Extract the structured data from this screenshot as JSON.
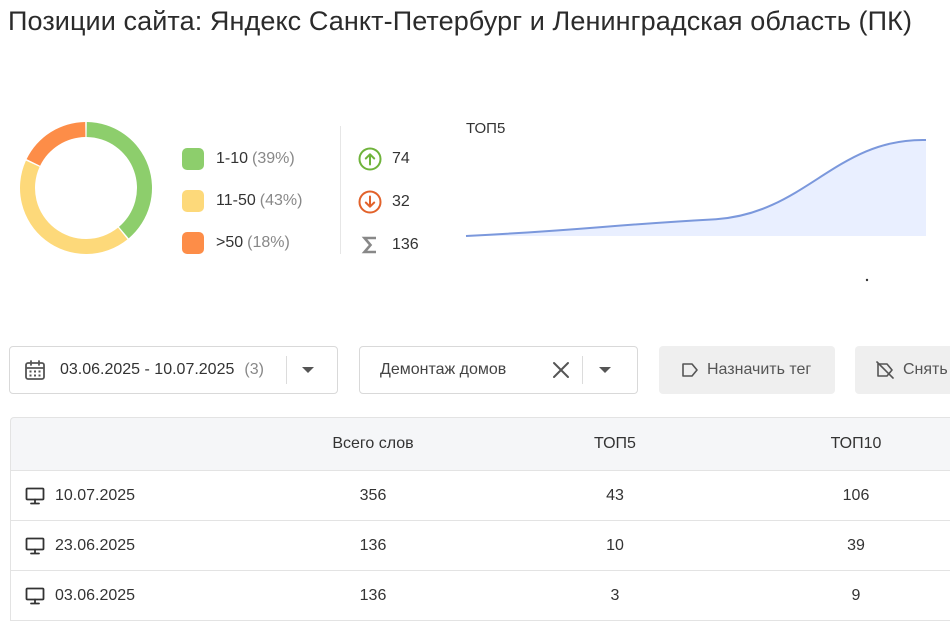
{
  "page": {
    "title": "Позиции сайта: Яндекс Санкт-Петербург и Ленинградская область (ПК)"
  },
  "distribution": {
    "segments": [
      {
        "label": "1-10",
        "pct_text": "(39%)",
        "value": 39,
        "color": "#8dce6c"
      },
      {
        "label": "11-50",
        "pct_text": "(43%)",
        "value": 43,
        "color": "#fdd97a"
      },
      {
        "label": ">50",
        "pct_text": "(18%)",
        "value": 18,
        "color": "#fd8d48"
      }
    ]
  },
  "stats": {
    "up": {
      "value": "74",
      "icon": "arrow-up-circle-icon",
      "color": "#6fb33b"
    },
    "down": {
      "value": "32",
      "icon": "arrow-down-circle-icon",
      "color": "#e2622b"
    },
    "total": {
      "value": "136",
      "icon": "sigma-icon",
      "color": "#888888"
    }
  },
  "sparkline": {
    "label": "ТОП5",
    "color": "#7b98dc",
    "fill": "#e9efff",
    "values": [
      3,
      10,
      43
    ]
  },
  "filters": {
    "date_range": "03.06.2025 - 10.07.2025",
    "date_count": "(3)",
    "tag_filter": "Демонтаж домов",
    "assign_tag_label": "Назначить тег",
    "remove_tag_label": "Снять"
  },
  "table": {
    "columns": [
      "",
      "Всего слов",
      "ТОП5",
      "ТОП10"
    ],
    "rows": [
      {
        "date": "10.07.2025",
        "total": "356",
        "top5": "43",
        "top10": "106"
      },
      {
        "date": "23.06.2025",
        "total": "136",
        "top5": "10",
        "top10": "39"
      },
      {
        "date": "03.06.2025",
        "total": "136",
        "top5": "3",
        "top10": "9"
      }
    ]
  }
}
